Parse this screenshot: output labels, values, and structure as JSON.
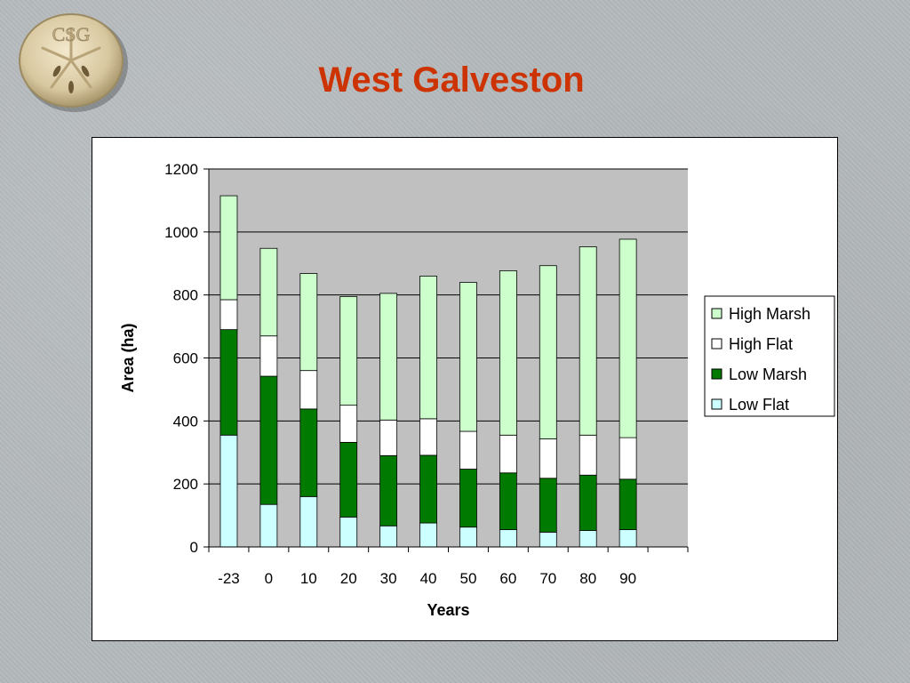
{
  "slide": {
    "title": "West Galveston",
    "logo_text": "CSG"
  },
  "colors": {
    "title": "#cc3300",
    "plot_background": "#c0c0c0",
    "low_flat": "#ccffff",
    "low_marsh": "#007a00",
    "high_flat": "#ffffff",
    "high_marsh": "#ccffcc"
  },
  "chart_data": {
    "type": "bar",
    "stacked": true,
    "title": "",
    "xlabel": "Years",
    "ylabel": "Area (ha)",
    "ylim": [
      0,
      1200
    ],
    "yticks": [
      0,
      200,
      400,
      600,
      800,
      1000,
      1200
    ],
    "grid": true,
    "legend_position": "right",
    "categories": [
      "-23",
      "0",
      "10",
      "20",
      "30",
      "40",
      "50",
      "60",
      "70",
      "80",
      "90"
    ],
    "series": [
      {
        "name": "Low Flat",
        "color": "#ccffff",
        "values": [
          355,
          135,
          160,
          95,
          67,
          76,
          63,
          55,
          47,
          52,
          55
        ]
      },
      {
        "name": "Low Marsh",
        "color": "#007a00",
        "values": [
          335,
          407,
          278,
          237,
          223,
          215,
          184,
          180,
          171,
          176,
          160
        ]
      },
      {
        "name": "High Flat",
        "color": "#ffffff",
        "values": [
          95,
          128,
          122,
          118,
          113,
          116,
          120,
          120,
          125,
          127,
          132
        ]
      },
      {
        "name": "High Marsh",
        "color": "#ccffcc",
        "values": [
          330,
          278,
          308,
          345,
          402,
          453,
          473,
          522,
          550,
          598,
          630
        ]
      }
    ],
    "legend_order": [
      "High Marsh",
      "High Flat",
      "Low Marsh",
      "Low Flat"
    ]
  }
}
